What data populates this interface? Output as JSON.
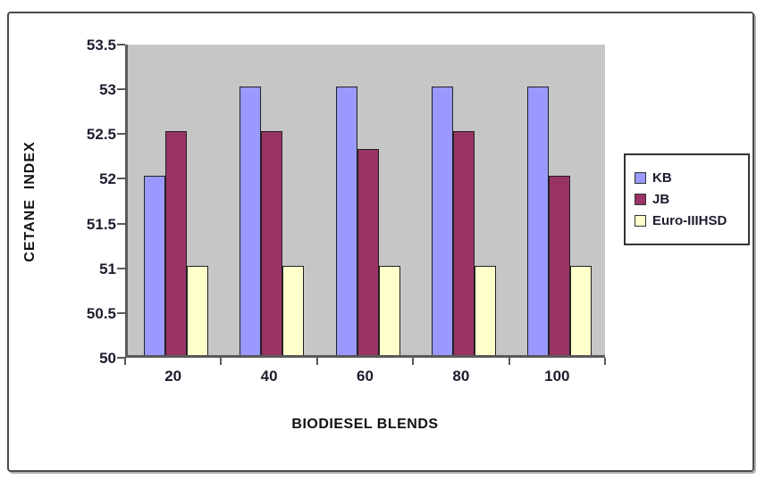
{
  "chart_data": {
    "type": "bar",
    "title": "",
    "categories": [
      "20",
      "40",
      "60",
      "80",
      "100"
    ],
    "series": [
      {
        "name": "KB",
        "color": "#9999FF",
        "values": [
          52,
          53,
          53,
          53,
          53
        ]
      },
      {
        "name": "JB",
        "color": "#993366",
        "values": [
          52.5,
          52.5,
          52.3,
          52.5,
          52
        ]
      },
      {
        "name": "Euro-IIIHSD",
        "color": "#FFFFCC",
        "values": [
          51,
          51,
          51,
          51,
          51
        ]
      }
    ],
    "xlabel": "BIODIESEL BLENDS",
    "ylabel": "CETANE  INDEX",
    "ylim": [
      50,
      53.5
    ],
    "ytick_step": 0.5,
    "yticks": [
      "50",
      "50.5",
      "51",
      "51.5",
      "52",
      "52.5",
      "53",
      "53.5"
    ],
    "grid": false,
    "legend_position": "right",
    "plot_background": "#C6C6C6",
    "axis_color": "#595959"
  }
}
